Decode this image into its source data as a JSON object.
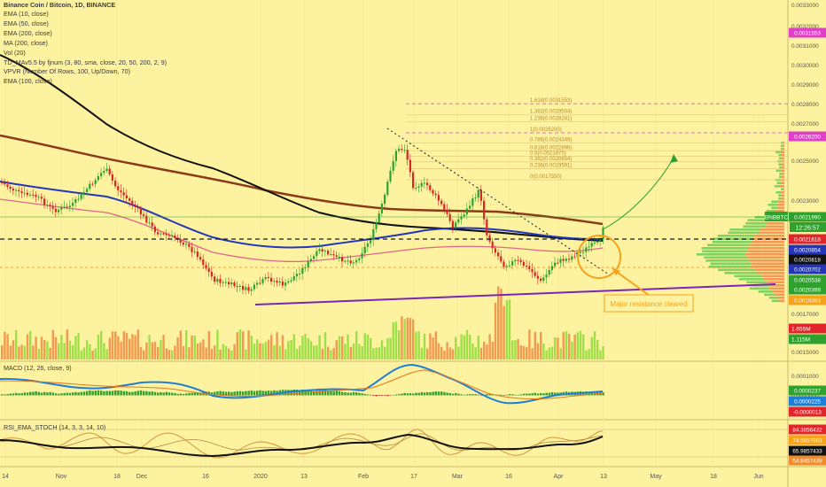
{
  "title": "Binance Coin / Bitcoin, 1D, BINANCE",
  "indicators": [
    "EMA (10, close)",
    "EMA (50, close)",
    "EMA (200, close)",
    "MA (200, close)",
    "Vol (20)",
    "TD_MAv5.5 by fjnum (3, 80, sma, close, 20, 50, 200, 2, 9)",
    "VPVR (Number Of Rows, 100, Up/Down, 70)",
    "EMA (100, close)"
  ],
  "panes": {
    "macd": "MACD (12, 26, close, 9)",
    "rsi": "RSI_EMA_STOCH (14, 3, 3, 14, 10)"
  },
  "symbol": "BNBBTC",
  "countdown": "12:26:57",
  "annotation": "Major resistance cleared",
  "colors": {
    "background": "#fdf2a0",
    "accent": "#f7a21b",
    "resistance": "#1a1a2e",
    "ema50": "#2435b8",
    "ema200": "#8b3a1a",
    "fib": "#d04aa0",
    "support": "#7a25b8",
    "up": "#2ea12e",
    "down": "#d62626"
  },
  "chart_data": {
    "type": "line",
    "x_ticks": [
      "14",
      "Nov",
      "18",
      "Dec",
      "16",
      "2020",
      "13",
      "Feb",
      "17",
      "Mar",
      "16",
      "Apr",
      "13",
      "May",
      "18",
      "Jun"
    ],
    "price_axis_ticks": [
      "0.0033000",
      "0.0032000",
      "0.0031000",
      "0.0030000",
      "0.0029000",
      "0.0028000",
      "0.0027000",
      "0.0025000",
      "0.0023000",
      "0.0017000",
      "0.0015000"
    ],
    "price_badges": [
      "0.0031553",
      "0.0026200",
      "0.0021990",
      "0.0021618",
      "0.0020854",
      "0.0020818",
      "0.0020702",
      "0.0020538",
      "0.0020399",
      "0.0019383"
    ],
    "volume_badges": [
      "1.655M",
      "1.115M"
    ],
    "fib_levels": [
      {
        "label": "1.618(0.0031553)",
        "value": 0.0031553
      },
      {
        "label": "1.382(0.0029504)",
        "value": 0.0029504
      },
      {
        "label": "1.236(0.0028241)",
        "value": 0.0028241
      },
      {
        "label": "1(0.0026200)",
        "value": 0.00262
      },
      {
        "label": "0.786(0.0024349)",
        "value": 0.0024349
      },
      {
        "label": "0.618(0.0022896)",
        "value": 0.0022896
      },
      {
        "label": "0.5(0.0021875)",
        "value": 0.0021875
      },
      {
        "label": "0.382(0.0020854)",
        "value": 0.0020854
      },
      {
        "label": "0.236(0.0019591)",
        "value": 0.0019591
      },
      {
        "label": "0(0.0017550)",
        "value": 0.001755
      }
    ],
    "macd_ticks": [
      "0.0001000",
      "0.0000000"
    ],
    "macd_badges": [
      "0.0000237",
      "0.0000225",
      "-0.0000013"
    ],
    "rsi_badges": [
      "84.3856432",
      "74.5657983",
      "65.9857433",
      "54.8457439"
    ]
  }
}
